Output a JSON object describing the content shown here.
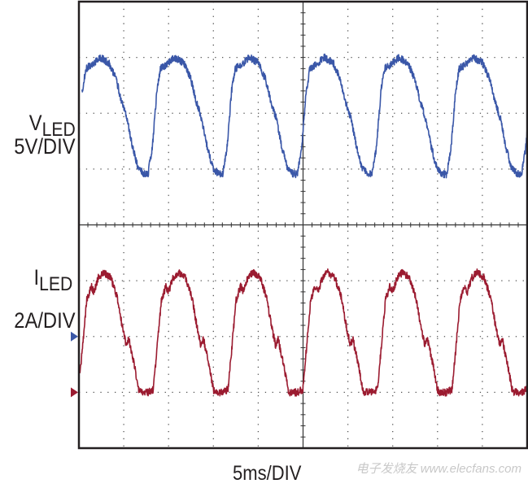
{
  "chart_data": {
    "type": "line",
    "title": "",
    "xlabel": "5ms/DIV",
    "x_divisions": 10,
    "y_divisions": 8,
    "grid": true,
    "x_range_ms": [
      0,
      50
    ],
    "channels": [
      {
        "label_main": "V",
        "label_sub": "LED",
        "scale": "5V/DIV",
        "unit": "V",
        "volts_per_div": 5,
        "color": "#3a57a8",
        "ground_marker_color": "#3a57a8",
        "period_ms": 8.33,
        "first_trough_ms": 7.7,
        "cycle_shape": {
          "phase_ms": [
            0,
            0.5,
            1.0,
            1.4,
            2.0,
            3.0,
            4.0,
            4.8,
            5.4,
            6.0,
            6.6,
            7.2,
            7.8,
            8.33
          ],
          "value": [
            14.5,
            17,
            22,
            24,
            24.3,
            25,
            24.5,
            23,
            21,
            19.5,
            17,
            15.2,
            14.6,
            14.5
          ]
        }
      },
      {
        "label_main": "I",
        "label_sub": "LED",
        "scale": "2A/DIV",
        "unit": "A",
        "amps_per_div": 2,
        "color": "#9b1b30",
        "ground_marker_color": "#9b1b30",
        "period_ms": 8.33,
        "first_trough_ms": 7.7,
        "cycle_shape": {
          "phase_ms": [
            0,
            0.6,
            1.0,
            1.5,
            2.0,
            2.3,
            2.8,
            3.4,
            4.2,
            4.9,
            5.5,
            5.9,
            6.2,
            6.8,
            7.3,
            7.5,
            8.33
          ],
          "value": [
            0,
            0.1,
            1.5,
            3.3,
            3.8,
            3.6,
            4.1,
            4.3,
            4.1,
            3.4,
            2.3,
            1.7,
            1.9,
            1.0,
            0.1,
            0,
            0
          ]
        }
      }
    ]
  },
  "watermark": "电子发烧友 www.elecfans.com"
}
